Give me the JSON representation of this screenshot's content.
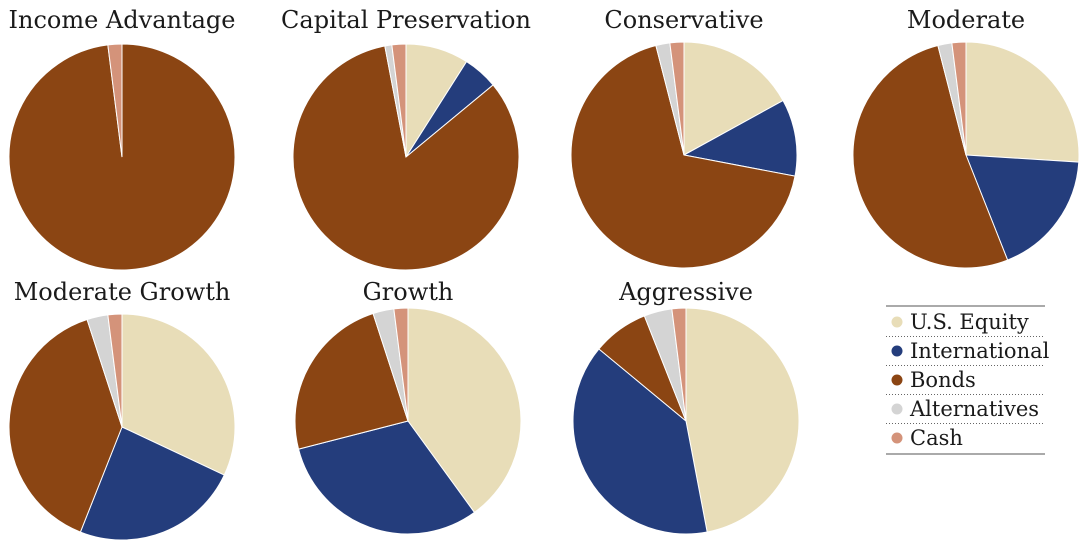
{
  "chart_data": [
    {
      "type": "pie",
      "title": "Income Advantage",
      "labels": [
        "U.S. Equity",
        "International",
        "Bonds",
        "Alternatives",
        "Cash"
      ],
      "values": [
        0,
        0,
        98,
        0,
        2
      ]
    },
    {
      "type": "pie",
      "title": "Capital Preservation",
      "labels": [
        "U.S. Equity",
        "International",
        "Bonds",
        "Alternatives",
        "Cash"
      ],
      "values": [
        9,
        5,
        83,
        1,
        2
      ]
    },
    {
      "type": "pie",
      "title": "Conservative",
      "labels": [
        "U.S. Equity",
        "International",
        "Bonds",
        "Alternatives",
        "Cash"
      ],
      "values": [
        17,
        11,
        68,
        2,
        2
      ]
    },
    {
      "type": "pie",
      "title": "Moderate",
      "labels": [
        "U.S. Equity",
        "International",
        "Bonds",
        "Alternatives",
        "Cash"
      ],
      "values": [
        26,
        18,
        52,
        2,
        2
      ]
    },
    {
      "type": "pie",
      "title": "Moderate Growth",
      "labels": [
        "U.S. Equity",
        "International",
        "Bonds",
        "Alternatives",
        "Cash"
      ],
      "values": [
        32,
        24,
        39,
        3,
        2
      ]
    },
    {
      "type": "pie",
      "title": "Growth",
      "labels": [
        "U.S. Equity",
        "International",
        "Bonds",
        "Alternatives",
        "Cash"
      ],
      "values": [
        40,
        31,
        24,
        3,
        2
      ]
    },
    {
      "type": "pie",
      "title": "Aggressive",
      "labels": [
        "U.S. Equity",
        "International",
        "Bonds",
        "Alternatives",
        "Cash"
      ],
      "values": [
        47,
        39,
        8,
        4,
        2
      ]
    }
  ],
  "legend": {
    "items": [
      {
        "label": "U.S. Equity",
        "color": "#e8ddb8"
      },
      {
        "label": "International",
        "color": "#243d7c"
      },
      {
        "label": "Bonds",
        "color": "#8b4513"
      },
      {
        "label": "Alternatives",
        "color": "#d4d4d4"
      },
      {
        "label": "Cash",
        "color": "#d4937a"
      }
    ]
  },
  "colors": {
    "us_equity": "#e8ddb8",
    "international": "#243d7c",
    "bonds": "#8b4513",
    "alternatives": "#d4d4d4",
    "cash": "#d4937a"
  }
}
